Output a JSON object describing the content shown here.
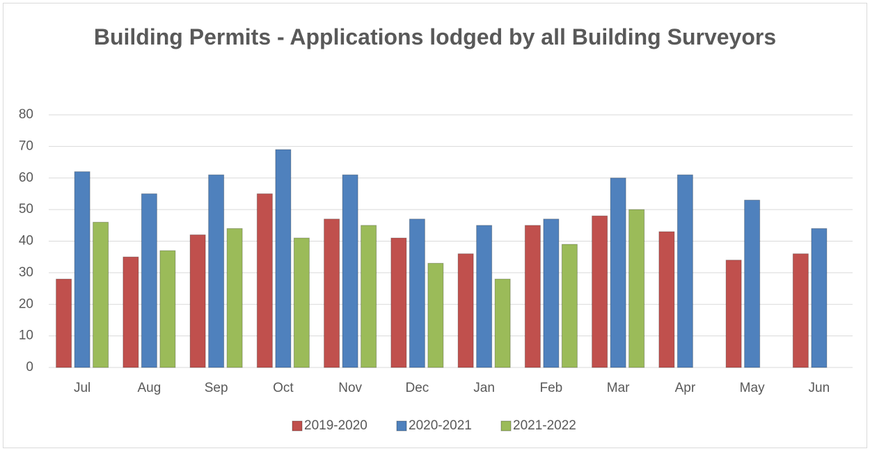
{
  "chart_data": {
    "type": "bar",
    "title": "Building Permits - Applications lodged by all Building Surveyors",
    "categories": [
      "Jul",
      "Aug",
      "Sep",
      "Oct",
      "Nov",
      "Dec",
      "Jan",
      "Feb",
      "Mar",
      "Apr",
      "May",
      "Jun"
    ],
    "series": [
      {
        "name": "2019-2020",
        "color": "#c0504d",
        "values": [
          28,
          35,
          42,
          55,
          47,
          41,
          36,
          45,
          48,
          43,
          34,
          36
        ]
      },
      {
        "name": "2020-2021",
        "color": "#4f81bd",
        "values": [
          62,
          55,
          61,
          69,
          61,
          47,
          45,
          47,
          60,
          61,
          53,
          44
        ]
      },
      {
        "name": "2021-2022",
        "color": "#9bbb59",
        "values": [
          46,
          37,
          44,
          41,
          45,
          33,
          28,
          39,
          50,
          null,
          null,
          null
        ]
      }
    ],
    "ylim": [
      0,
      80
    ],
    "yticks": [
      0,
      10,
      20,
      30,
      40,
      50,
      60,
      70,
      80
    ],
    "grid": true,
    "legend": "bottom"
  }
}
